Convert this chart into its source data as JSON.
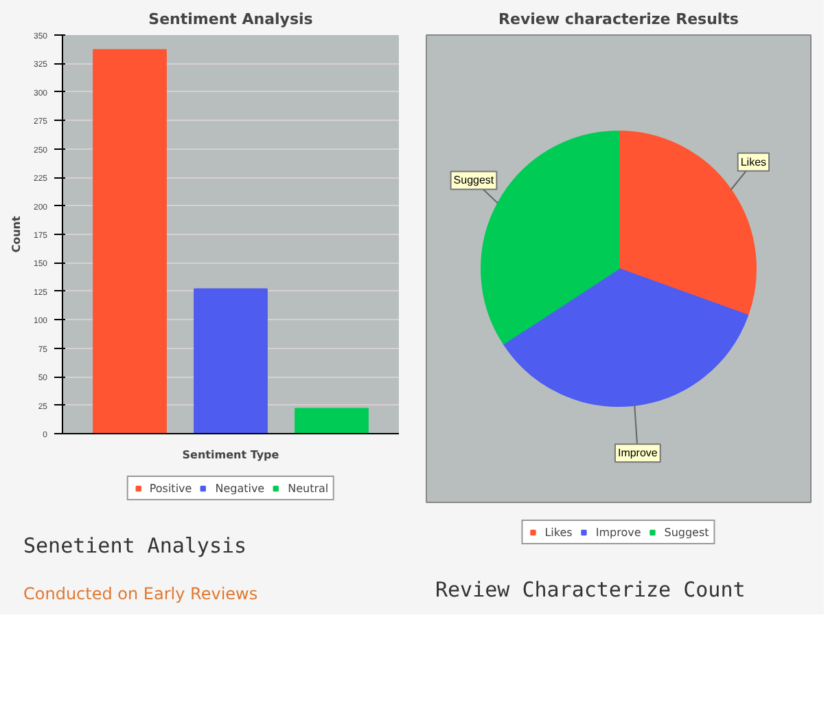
{
  "chart_data": [
    {
      "type": "bar",
      "title": "Sentiment Analysis",
      "xlabel": "Sentiment Type",
      "ylabel": "Count",
      "categories": [
        null
      ],
      "series": [
        {
          "name": "Positive",
          "color": "#ff5533",
          "values": [
            337
          ]
        },
        {
          "name": "Negative",
          "color": "#4f5cf0",
          "values": [
            127
          ]
        },
        {
          "name": "Neutral",
          "color": "#00cc55",
          "values": [
            22
          ]
        }
      ],
      "ylim": [
        0,
        350
      ],
      "yticks": [
        0,
        25,
        50,
        75,
        100,
        125,
        150,
        175,
        200,
        225,
        250,
        275,
        300,
        325,
        350
      ],
      "grid": "y",
      "legend": "bottom",
      "tick_labels": "y",
      "annotations": [
        "Senetient Analysis",
        "Conducted on Early Reviews"
      ]
    },
    {
      "type": "pie",
      "title": "Review characterize Results",
      "categories": [
        "Likes",
        "Improve",
        "Suggest"
      ],
      "values": [
        30.5,
        35.3,
        34.2
      ],
      "colors": [
        "#ff5533",
        "#4f5cf0",
        "#00cc55"
      ],
      "legend": "bottom",
      "annotations": [
        "Review Characterize Count"
      ]
    }
  ]
}
